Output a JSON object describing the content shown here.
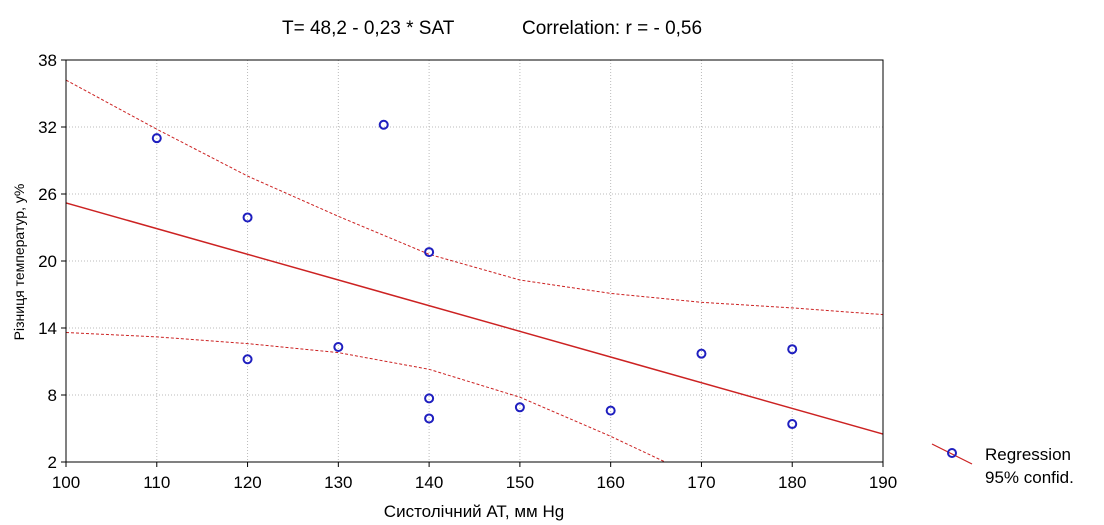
{
  "chart_data": {
    "type": "scatter",
    "title_left": "T= 48,2 - 0,23 * SAT",
    "title_right": "Correlation: r = - 0,56",
    "xlabel": "Систолічний АТ, мм Hg",
    "ylabel": "Різниця температур, у%",
    "xlim": [
      100,
      190
    ],
    "ylim": [
      2,
      38
    ],
    "xticks": [
      100,
      110,
      120,
      130,
      140,
      150,
      160,
      170,
      180,
      190
    ],
    "yticks": [
      2,
      8,
      14,
      20,
      26,
      32,
      38
    ],
    "grid": true,
    "legend_position": "bottom-right, outside plot",
    "legend_entries": [
      "Regression",
      "95% confid."
    ],
    "colors": {
      "points": "#1f1fbf",
      "regression": "#cc2222",
      "confidence": "#cc2222",
      "grid": "#bbbbbb"
    },
    "points": [
      {
        "x": 110,
        "y": 31.0
      },
      {
        "x": 120,
        "y": 23.9
      },
      {
        "x": 120,
        "y": 11.2
      },
      {
        "x": 130,
        "y": 12.3
      },
      {
        "x": 135,
        "y": 32.2
      },
      {
        "x": 140,
        "y": 20.8
      },
      {
        "x": 140,
        "y": 7.7
      },
      {
        "x": 140,
        "y": 5.9
      },
      {
        "x": 150,
        "y": 6.9
      },
      {
        "x": 160,
        "y": 6.6
      },
      {
        "x": 170,
        "y": 11.7
      },
      {
        "x": 180,
        "y": 12.1
      },
      {
        "x": 180,
        "y": 5.4
      }
    ],
    "regression": {
      "intercept": 48.2,
      "slope": -0.23
    },
    "confidence_upper": [
      {
        "x": 100,
        "y": 36.2
      },
      {
        "x": 110,
        "y": 31.8
      },
      {
        "x": 120,
        "y": 27.6
      },
      {
        "x": 130,
        "y": 24.0
      },
      {
        "x": 140,
        "y": 20.6
      },
      {
        "x": 150,
        "y": 18.3
      },
      {
        "x": 160,
        "y": 17.1
      },
      {
        "x": 170,
        "y": 16.3
      },
      {
        "x": 180,
        "y": 15.8
      },
      {
        "x": 190,
        "y": 15.2
      }
    ],
    "confidence_lower": [
      {
        "x": 100,
        "y": 13.6
      },
      {
        "x": 110,
        "y": 13.2
      },
      {
        "x": 120,
        "y": 12.6
      },
      {
        "x": 130,
        "y": 11.8
      },
      {
        "x": 140,
        "y": 10.3
      },
      {
        "x": 150,
        "y": 7.8
      },
      {
        "x": 160,
        "y": 4.3
      },
      {
        "x": 166,
        "y": 2.0
      }
    ]
  }
}
